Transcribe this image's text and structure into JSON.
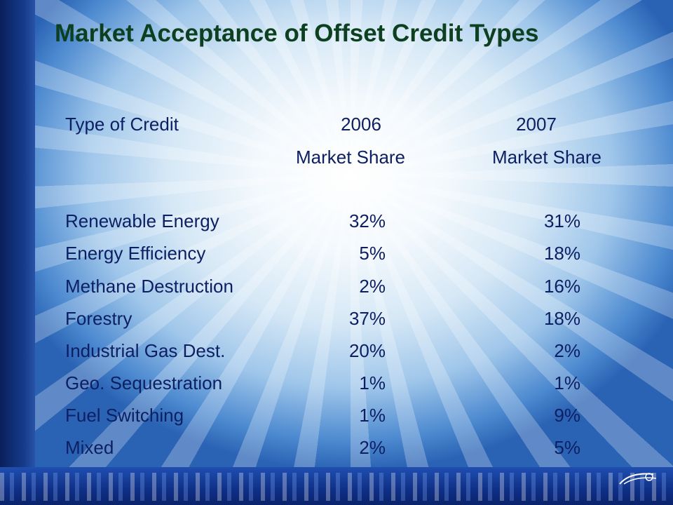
{
  "slide": {
    "title": "Market Acceptance of Offset Credit Types"
  },
  "table": {
    "header": {
      "col1": "Type of Credit",
      "col2_line1": "2006",
      "col3_line1": "2007",
      "col2_line2": "Market Share",
      "col3_line2": "Market Share"
    },
    "rows": [
      {
        "type": "Renewable Energy",
        "y2006": "32%",
        "y2007": "31%"
      },
      {
        "type": "Energy Efficiency",
        "y2006": "5%",
        "y2007": "18%"
      },
      {
        "type": "Methane Destruction",
        "y2006": "2%",
        "y2007": "16%"
      },
      {
        "type": "Forestry",
        "y2006": "37%",
        "y2007": "18%"
      },
      {
        "type": "Industrial Gas Dest.",
        "y2006": "20%",
        "y2007": "2%"
      },
      {
        "type": "Geo. Sequestration",
        "y2006": "1%",
        "y2007": "1%"
      },
      {
        "type": "Fuel Switching",
        "y2006": "1%",
        "y2007": "9%"
      },
      {
        "type": "Mixed",
        "y2006": "2%",
        "y2007": "5%"
      }
    ]
  },
  "colors": {
    "title": "#0d4020",
    "body_text": "#0d1f63"
  }
}
